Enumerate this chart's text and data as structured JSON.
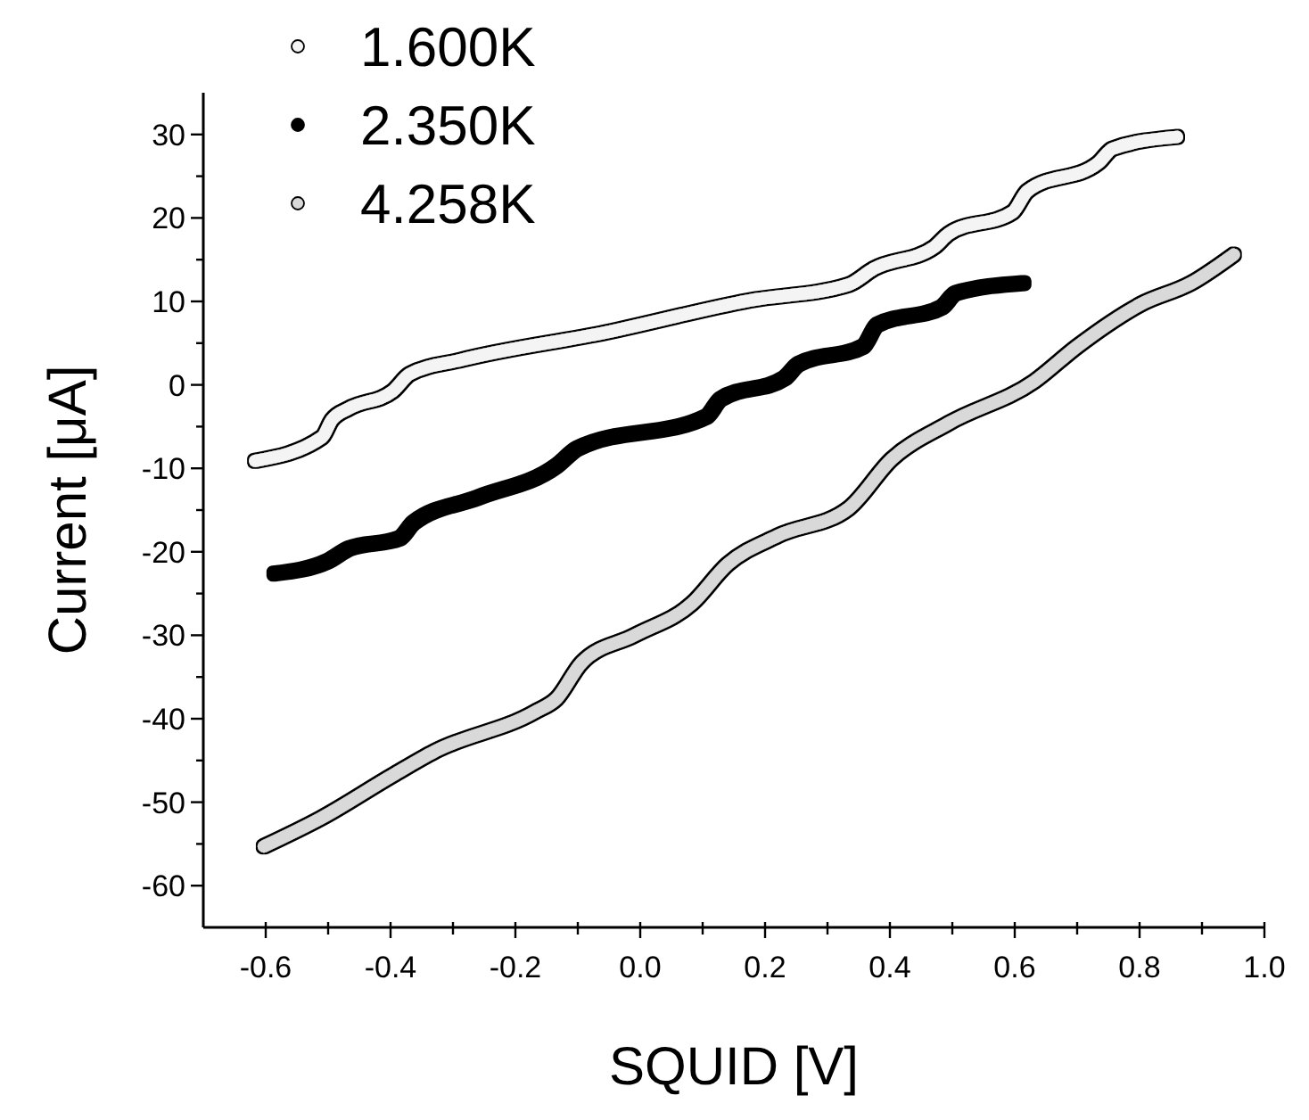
{
  "chart_data": {
    "type": "line",
    "xlabel": "SQUID [V]",
    "ylabel": "Current [μA]",
    "xlim": [
      -0.7,
      1.0
    ],
    "ylim": [
      -65,
      35
    ],
    "xticks": [
      -0.6,
      {
        "value": -0.5,
        "label": null
      },
      -0.4,
      {
        "value": -0.3,
        "label": null
      },
      -0.2,
      {
        "value": -0.1,
        "label": null
      },
      {
        "value": 0,
        "label": "0.0"
      },
      {
        "value": 0.1,
        "label": null
      },
      0.2,
      {
        "value": 0.3,
        "label": null
      },
      0.4,
      {
        "value": 0.5,
        "label": null
      },
      0.6,
      {
        "value": 0.7,
        "label": null
      },
      0.8,
      {
        "value": 0.9,
        "label": null
      },
      {
        "value": 1.0,
        "label": "1.0"
      }
    ],
    "yticks": [
      -60,
      {
        "value": -55,
        "label": null
      },
      -50,
      {
        "value": -45,
        "label": null
      },
      -40,
      {
        "value": -35,
        "label": null
      },
      -30,
      {
        "value": -25,
        "label": null
      },
      -20,
      {
        "value": -15,
        "label": null
      },
      -10,
      {
        "value": -5,
        "label": null
      },
      0,
      {
        "value": 5,
        "label": null
      },
      10,
      {
        "value": 15,
        "label": null
      },
      20,
      {
        "value": 25,
        "label": null
      },
      30
    ],
    "grid": false,
    "legend": "top left",
    "marker": "circle",
    "line_style": "solid",
    "series": [
      {
        "name": "1.600K",
        "color": "#f4f4f4",
        "x": [
          -0.617,
          -0.51,
          -0.494,
          -0.466,
          -0.397,
          -0.369,
          -0.286,
          -0.054,
          0.174,
          0.334,
          0.374,
          0.471,
          0.494,
          0.597,
          0.62,
          0.734,
          0.757,
          0.86
        ],
        "values": [
          -9.1,
          -6.3,
          -4.2,
          -2.8,
          -0.8,
          1.3,
          3.0,
          6.3,
          10.1,
          12.0,
          13.9,
          16.5,
          18.1,
          20.7,
          23.2,
          26.6,
          28.3,
          29.7
        ]
      },
      {
        "name": "2.350K",
        "color": "#000000",
        "x": [
          -0.586,
          -0.5,
          -0.466,
          -0.386,
          -0.363,
          -0.26,
          -0.134,
          -0.1,
          0.106,
          0.129,
          0.231,
          0.254,
          0.357,
          0.38,
          0.483,
          0.506,
          0.614
        ],
        "values": [
          -22.6,
          -21.1,
          -19.6,
          -18.4,
          -16.5,
          -13.5,
          -9.7,
          -7.6,
          -3.8,
          -1.7,
          0.8,
          2.5,
          4.6,
          7.2,
          9.3,
          11.0,
          12.2
        ]
      },
      {
        "name": "4.258K",
        "color": "#d9d9d9",
        "x": [
          -0.603,
          -0.511,
          -0.397,
          -0.329,
          -0.169,
          -0.134,
          -0.094,
          -0.009,
          0.083,
          0.14,
          0.22,
          0.334,
          0.403,
          0.494,
          0.631,
          0.7,
          0.803,
          0.883,
          0.951
        ],
        "values": [
          -55.3,
          -51.9,
          -46.8,
          -43.9,
          -39.2,
          -37.6,
          -33.3,
          -30.0,
          -26.2,
          -21.5,
          -18.1,
          -14.8,
          -8.9,
          -4.6,
          0.4,
          4.6,
          9.7,
          12.2,
          15.6
        ]
      }
    ]
  }
}
